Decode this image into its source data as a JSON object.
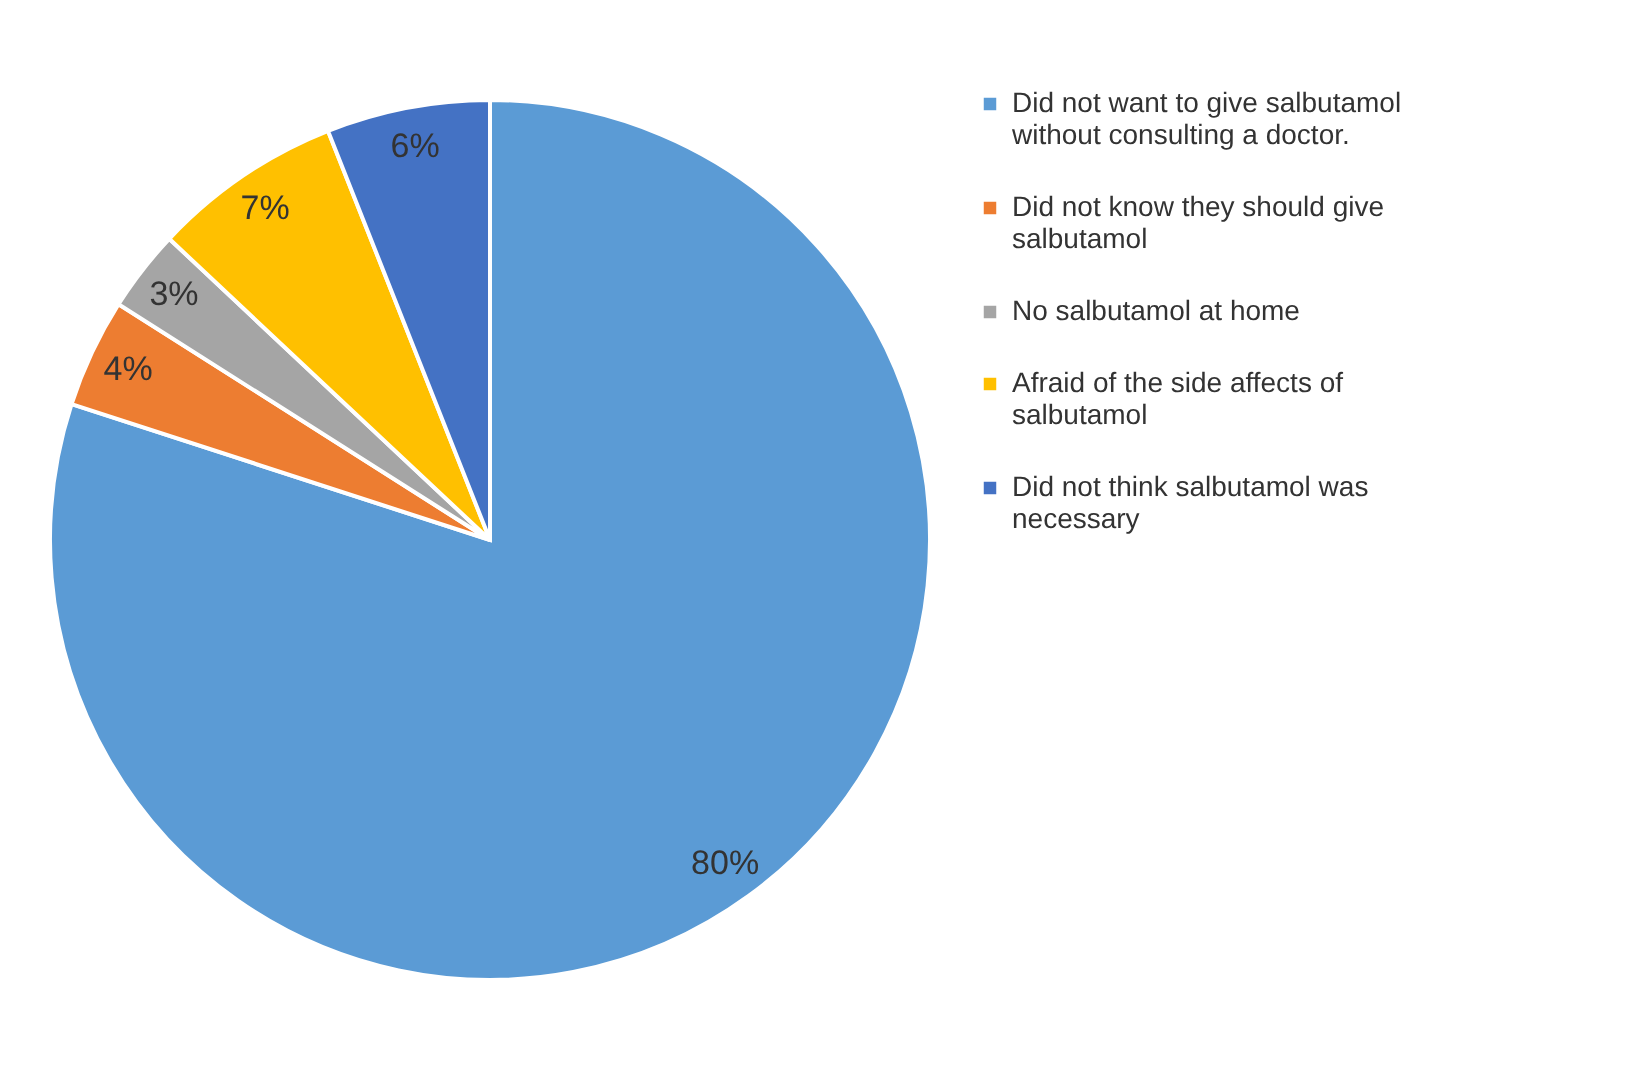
{
  "chart_data": {
    "type": "pie",
    "categories": [
      "Did not want to give salbutamol without consulting a doctor.",
      "Did not know they should give salbutamol",
      "No salbutamol at home",
      "Afraid of the side affects of salbutamol",
      "Did not think salbutamol  was necessary"
    ],
    "values": [
      80,
      4,
      3,
      7,
      6
    ],
    "colors": [
      "#5b9bd5",
      "#ed7d31",
      "#a5a5a5",
      "#ffc000",
      "#4472c4"
    ],
    "value_labels": [
      "80%",
      "4%",
      "3%",
      "7%",
      "6%"
    ],
    "legend": "right"
  }
}
